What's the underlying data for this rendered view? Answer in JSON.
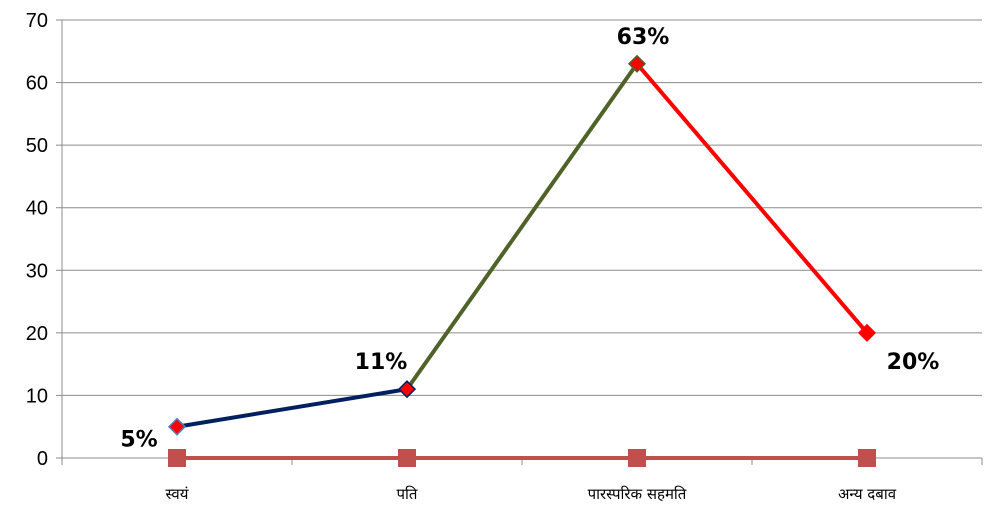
{
  "chart_data": {
    "type": "line",
    "categories": [
      "स्वयं",
      "पति",
      "पारस्परिक सहमति",
      "अन्य दबाव"
    ],
    "ylim": [
      0,
      70
    ],
    "yticks": [
      0,
      10,
      20,
      30,
      40,
      50,
      60,
      70
    ],
    "grid": true,
    "series": [
      {
        "values": [
          5,
          11,
          63,
          20
        ],
        "data_labels": [
          "5%",
          "11%",
          "63%",
          "20%"
        ],
        "segment_colors": [
          "#002060",
          "#4F6228",
          "#FF0000"
        ],
        "marker": "diamond",
        "marker_color": "#FF0000"
      },
      {
        "values": [
          0,
          0,
          0,
          0
        ],
        "color": "#C0504D",
        "marker": "square"
      }
    ]
  }
}
